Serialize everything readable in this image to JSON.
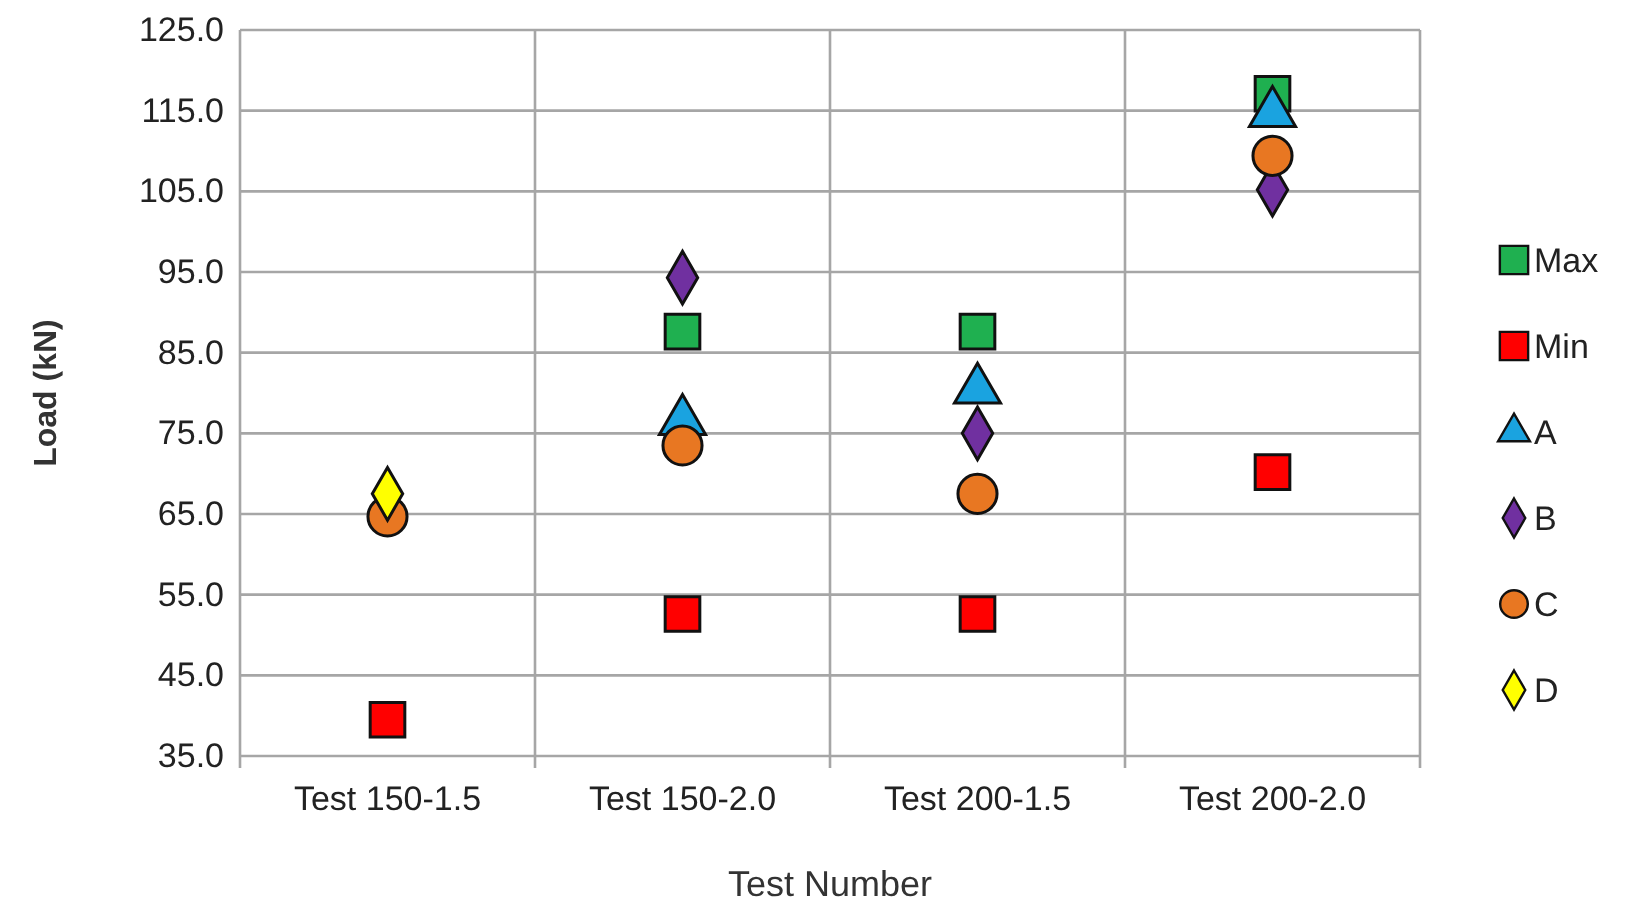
{
  "chart_data": {
    "type": "scatter",
    "xlabel": "Test Number",
    "ylabel": "Load (kN)",
    "categories": [
      "Test 150-1.5",
      "Test 150-2.0",
      "Test 200-1.5",
      "Test 200-2.0"
    ],
    "ylim": [
      35,
      125
    ],
    "yticks": [
      {
        "value": 35,
        "label": "35.0"
      },
      {
        "value": 45,
        "label": "45.0"
      },
      {
        "value": 55,
        "label": "55.0"
      },
      {
        "value": 65,
        "label": "65.0"
      },
      {
        "value": 75,
        "label": "75.0"
      },
      {
        "value": 85,
        "label": "85.0"
      },
      {
        "value": 95,
        "label": "95.0"
      },
      {
        "value": 105,
        "label": "105.0"
      },
      {
        "value": 115,
        "label": "115.0"
      },
      {
        "value": 125,
        "label": "125.0"
      }
    ],
    "grid": true,
    "legend": "right",
    "series": [
      {
        "name": "Max",
        "color": "#1fb050",
        "marker": "square",
        "values": [
          null,
          87.6,
          87.6,
          117.1
        ]
      },
      {
        "name": "Min",
        "color": "#ff0000",
        "marker": "square",
        "values": [
          39.5,
          52.6,
          52.6,
          70.2
        ]
      },
      {
        "name": "A",
        "color": "#1aa3e0",
        "marker": "triangle",
        "values": [
          null,
          76.5,
          80.4,
          114.7
        ]
      },
      {
        "name": "B",
        "color": "#7030a0",
        "marker": "diamond",
        "values": [
          null,
          94.3,
          75,
          105.2
        ]
      },
      {
        "name": "C",
        "color": "#e87722",
        "marker": "circle",
        "values": [
          64.7,
          73.5,
          67.5,
          109.4
        ]
      },
      {
        "name": "D",
        "color": "#ffff00",
        "marker": "diamond",
        "values": [
          67.5,
          null,
          null,
          null
        ]
      }
    ]
  }
}
